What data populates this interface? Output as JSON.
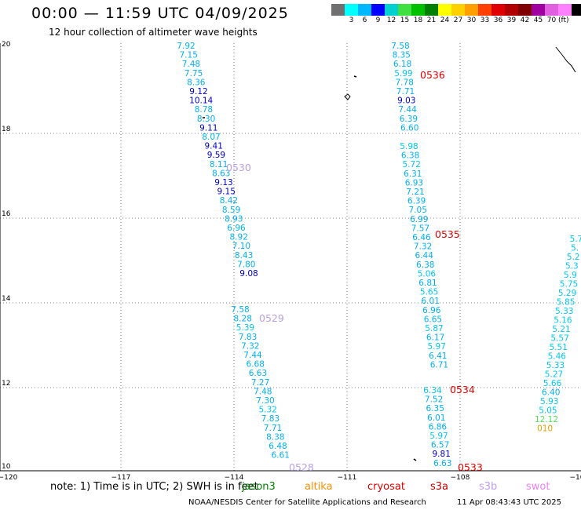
{
  "title": "00:00 — 11:59 UTC 04/09/2025",
  "subtitle": "12 hour collection of altimeter wave heights",
  "color_scale": {
    "colors": [
      "#707070",
      "#00ffff",
      "#00b8ff",
      "#0000ff",
      "#00d0d0",
      "#40e040",
      "#00c000",
      "#008000",
      "#ffff00",
      "#ffd000",
      "#ffa000",
      "#ff4000",
      "#e00000",
      "#b00000",
      "#800000",
      "#a000a0",
      "#e060e0",
      "#ff80ff",
      "#000000"
    ],
    "labels": [
      "",
      "3",
      "6",
      "9",
      "12",
      "15",
      "18",
      "21",
      "24",
      "27",
      "30",
      "33",
      "36",
      "39",
      "42",
      "45",
      "70"
    ],
    "unit": "(ft)"
  },
  "map": {
    "lat_labels": [
      "20",
      "18",
      "16",
      "14",
      "12",
      "10"
    ],
    "lon_labels": [
      "−120",
      "−117",
      "−114",
      "−111",
      "−108",
      "−10"
    ],
    "tracks": [
      {
        "id": "0530",
        "label_color": "#b8a0e8",
        "points": [
          {
            "v": "7.92",
            "c": "#00b0f0"
          },
          {
            "v": "7.15",
            "c": "#00b0f0"
          },
          {
            "v": "7.48",
            "c": "#00b0f0"
          },
          {
            "v": "7.75",
            "c": "#00b0f0"
          },
          {
            "v": "8.36",
            "c": "#00b0f0"
          },
          {
            "v": "9.12",
            "c": "#0000c0"
          },
          {
            "v": "10.14",
            "c": "#0000c0"
          },
          {
            "v": "8.78",
            "c": "#00b0f0"
          },
          {
            "v": "8.30",
            "c": "#00b0f0"
          },
          {
            "v": "9.11",
            "c": "#0000c0"
          },
          {
            "v": "8.07",
            "c": "#00b0f0"
          },
          {
            "v": "9.41",
            "c": "#0000c0"
          },
          {
            "v": "9.59",
            "c": "#0000c0"
          },
          {
            "v": "8.11",
            "c": "#00b0f0"
          },
          {
            "v": "8.63",
            "c": "#00b0f0"
          },
          {
            "v": "9.13",
            "c": "#0000c0"
          },
          {
            "v": "9.15",
            "c": "#0000c0"
          },
          {
            "v": "8.42",
            "c": "#00b0f0"
          },
          {
            "v": "8.59",
            "c": "#00b0f0"
          },
          {
            "v": "8.93",
            "c": "#00b0f0"
          },
          {
            "v": "6.96",
            "c": "#00b0f0"
          },
          {
            "v": "8.92",
            "c": "#00b0f0"
          },
          {
            "v": "7.10",
            "c": "#00b0f0"
          },
          {
            "v": "8.43",
            "c": "#00b0f0"
          },
          {
            "v": "7.80",
            "c": "#00b0f0"
          },
          {
            "v": "9.08",
            "c": "#0000c0"
          }
        ]
      },
      {
        "id": "0529",
        "label_color": "#b8a0e8",
        "points": [
          {
            "v": "7.58",
            "c": "#00b0f0"
          },
          {
            "v": "8.28",
            "c": "#00b0f0"
          },
          {
            "v": "5.39",
            "c": "#00c8f0"
          },
          {
            "v": "7.83",
            "c": "#00b0f0"
          },
          {
            "v": "7.32",
            "c": "#00b0f0"
          },
          {
            "v": "7.44",
            "c": "#00b0f0"
          },
          {
            "v": "6.68",
            "c": "#00b0f0"
          },
          {
            "v": "6.63",
            "c": "#00b0f0"
          },
          {
            "v": "7.27",
            "c": "#00b0f0"
          },
          {
            "v": "7.48",
            "c": "#00b0f0"
          },
          {
            "v": "7.30",
            "c": "#00b0f0"
          },
          {
            "v": "5.32",
            "c": "#00c8f0"
          },
          {
            "v": "7.83",
            "c": "#00b0f0"
          },
          {
            "v": "7.71",
            "c": "#00b0f0"
          },
          {
            "v": "8.38",
            "c": "#00b0f0"
          },
          {
            "v": "6.48",
            "c": "#00b0f0"
          },
          {
            "v": "6.61",
            "c": "#00b0f0"
          }
        ]
      },
      {
        "id": "0528",
        "label_color": "#b8a0e8"
      },
      {
        "id": "0536",
        "label_color": "#e00000",
        "points": [
          {
            "v": "7.58",
            "c": "#00b0f0"
          },
          {
            "v": "8.35",
            "c": "#00b0f0"
          },
          {
            "v": "6.18",
            "c": "#00b0f0"
          },
          {
            "v": "5.99",
            "c": "#00c8f0"
          },
          {
            "v": "7.78",
            "c": "#00b0f0"
          },
          {
            "v": "7.71",
            "c": "#00b0f0"
          },
          {
            "v": "9.03",
            "c": "#0000c0"
          },
          {
            "v": "7.44",
            "c": "#00b0f0"
          },
          {
            "v": "6.39",
            "c": "#00b0f0"
          },
          {
            "v": "6.60",
            "c": "#00b0f0"
          }
        ]
      },
      {
        "id": "0535",
        "label_color": "#e00000",
        "points": [
          {
            "v": "5.98",
            "c": "#00c8f0"
          },
          {
            "v": "6.38",
            "c": "#00b0f0"
          },
          {
            "v": "5.72",
            "c": "#00c8f0"
          },
          {
            "v": "6.31",
            "c": "#00b0f0"
          },
          {
            "v": "6.93",
            "c": "#00b0f0"
          },
          {
            "v": "7.21",
            "c": "#00b0f0"
          },
          {
            "v": "6.39",
            "c": "#00b0f0"
          },
          {
            "v": "7.05",
            "c": "#00b0f0"
          },
          {
            "v": "6.99",
            "c": "#00b0f0"
          },
          {
            "v": "7.57",
            "c": "#00b0f0"
          },
          {
            "v": "6.46",
            "c": "#00b0f0"
          },
          {
            "v": "7.32",
            "c": "#00b0f0"
          },
          {
            "v": "6.44",
            "c": "#00b0f0"
          },
          {
            "v": "6.38",
            "c": "#00b0f0"
          },
          {
            "v": "5.06",
            "c": "#00c8f0"
          },
          {
            "v": "6.81",
            "c": "#00b0f0"
          },
          {
            "v": "5.65",
            "c": "#00c8f0"
          },
          {
            "v": "6.01",
            "c": "#00b0f0"
          },
          {
            "v": "6.96",
            "c": "#00b0f0"
          },
          {
            "v": "6.65",
            "c": "#00b0f0"
          },
          {
            "v": "5.87",
            "c": "#00c8f0"
          },
          {
            "v": "6.17",
            "c": "#00b0f0"
          },
          {
            "v": "5.97",
            "c": "#00c8f0"
          },
          {
            "v": "6.41",
            "c": "#00b0f0"
          },
          {
            "v": "6.71",
            "c": "#00b0f0"
          }
        ]
      },
      {
        "id": "0534",
        "label_color": "#e00000",
        "points": [
          {
            "v": "6.34",
            "c": "#00c8f0"
          },
          {
            "v": "7.52",
            "c": "#00b0f0"
          },
          {
            "v": "6.35",
            "c": "#00b0f0"
          },
          {
            "v": "6.01",
            "c": "#00b0f0"
          },
          {
            "v": "6.86",
            "c": "#00b0f0"
          },
          {
            "v": "5.97",
            "c": "#00c8f0"
          },
          {
            "v": "6.57",
            "c": "#00b0f0"
          },
          {
            "v": "9.81",
            "c": "#0000c0"
          },
          {
            "v": "6.63",
            "c": "#00b0f0"
          }
        ]
      },
      {
        "id": "0533",
        "label_color": "#e00000"
      },
      {
        "id": "east",
        "label_color": "#e0a000",
        "points": [
          {
            "v": "5.7",
            "c": "#00c8f0"
          },
          {
            "v": "5.",
            "c": "#00c8f0"
          },
          {
            "v": "5.2",
            "c": "#00c8f0"
          },
          {
            "v": "5.3",
            "c": "#00c8f0"
          },
          {
            "v": "5.9",
            "c": "#00c8f0"
          },
          {
            "v": "5.75",
            "c": "#00c8f0"
          },
          {
            "v": "5.29",
            "c": "#00c8f0"
          },
          {
            "v": "5.85",
            "c": "#00c8f0"
          },
          {
            "v": "5.33",
            "c": "#00c8f0"
          },
          {
            "v": "5.16",
            "c": "#00c8f0"
          },
          {
            "v": "5.21",
            "c": "#00c8f0"
          },
          {
            "v": "5.57",
            "c": "#00c8f0"
          },
          {
            "v": "5.51",
            "c": "#00c8f0"
          },
          {
            "v": "5.46",
            "c": "#00c8f0"
          },
          {
            "v": "5.33",
            "c": "#00c8f0"
          },
          {
            "v": "5.27",
            "c": "#00c8f0"
          },
          {
            "v": "5.66",
            "c": "#00c8f0"
          },
          {
            "v": "6.40",
            "c": "#00b0f0"
          },
          {
            "v": "5.93",
            "c": "#00c8f0"
          },
          {
            "v": "5.05",
            "c": "#00c8f0"
          },
          {
            "v": "12.12",
            "c": "#50e050"
          },
          {
            "v": "010",
            "c": "#e0a000"
          }
        ]
      }
    ]
  },
  "note": "note:  1) Time is in UTC;  2) SWH is in feet",
  "satellites": [
    {
      "name": "jason3",
      "color": "#008000"
    },
    {
      "name": "altika",
      "color": "#ff9000"
    },
    {
      "name": "cryosat",
      "color": "#e00000"
    },
    {
      "name": "s3a",
      "color": "#c00000"
    },
    {
      "name": "s3b",
      "color": "#c0a0f0"
    },
    {
      "name": "swot",
      "color": "#f080f0"
    }
  ],
  "credit": "NOAA/NESDIS Center for Satellite Applications and Research",
  "timestamp": "11 Apr 08:43:43 UTC 2025"
}
